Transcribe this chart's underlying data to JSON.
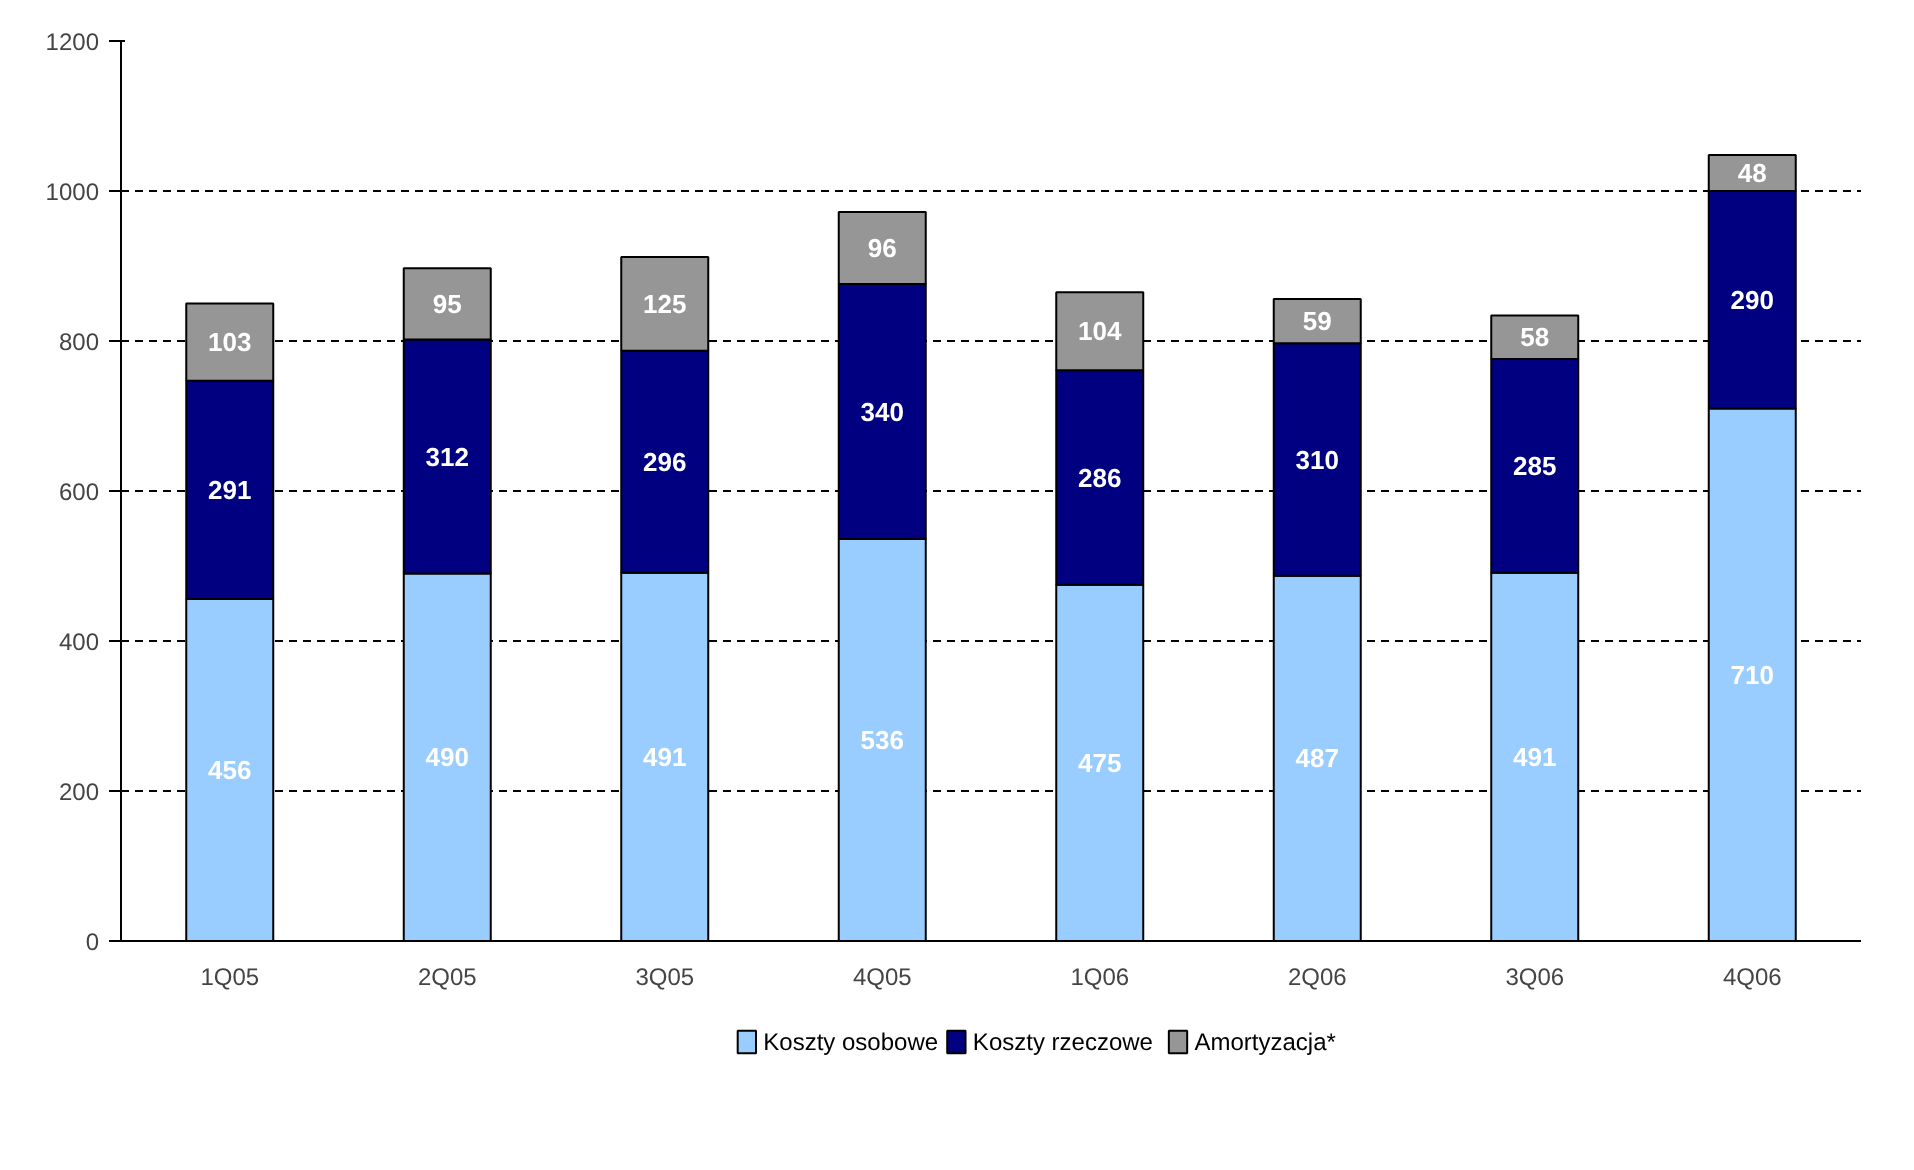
{
  "chart_data": {
    "type": "bar",
    "stacked": true,
    "categories": [
      "1Q05",
      "2Q05",
      "3Q05",
      "4Q05",
      "1Q06",
      "2Q06",
      "3Q06",
      "4Q06"
    ],
    "series": [
      {
        "name": "Koszty osobowe",
        "color": "#99ccff",
        "values": [
          456,
          490,
          491,
          536,
          475,
          487,
          491,
          710
        ]
      },
      {
        "name": "Koszty rzeczowe",
        "color": "#000080",
        "values": [
          291,
          312,
          296,
          340,
          286,
          310,
          285,
          290
        ]
      },
      {
        "name": "Amortyzacja*",
        "color": "#969696",
        "values": [
          103,
          95,
          125,
          96,
          104,
          59,
          58,
          48
        ]
      }
    ],
    "ylim": [
      0,
      1200
    ],
    "yticks": [
      0,
      200,
      400,
      600,
      800,
      1000,
      1200
    ],
    "grid": "y",
    "data_labels": true,
    "legend": "bottom"
  }
}
